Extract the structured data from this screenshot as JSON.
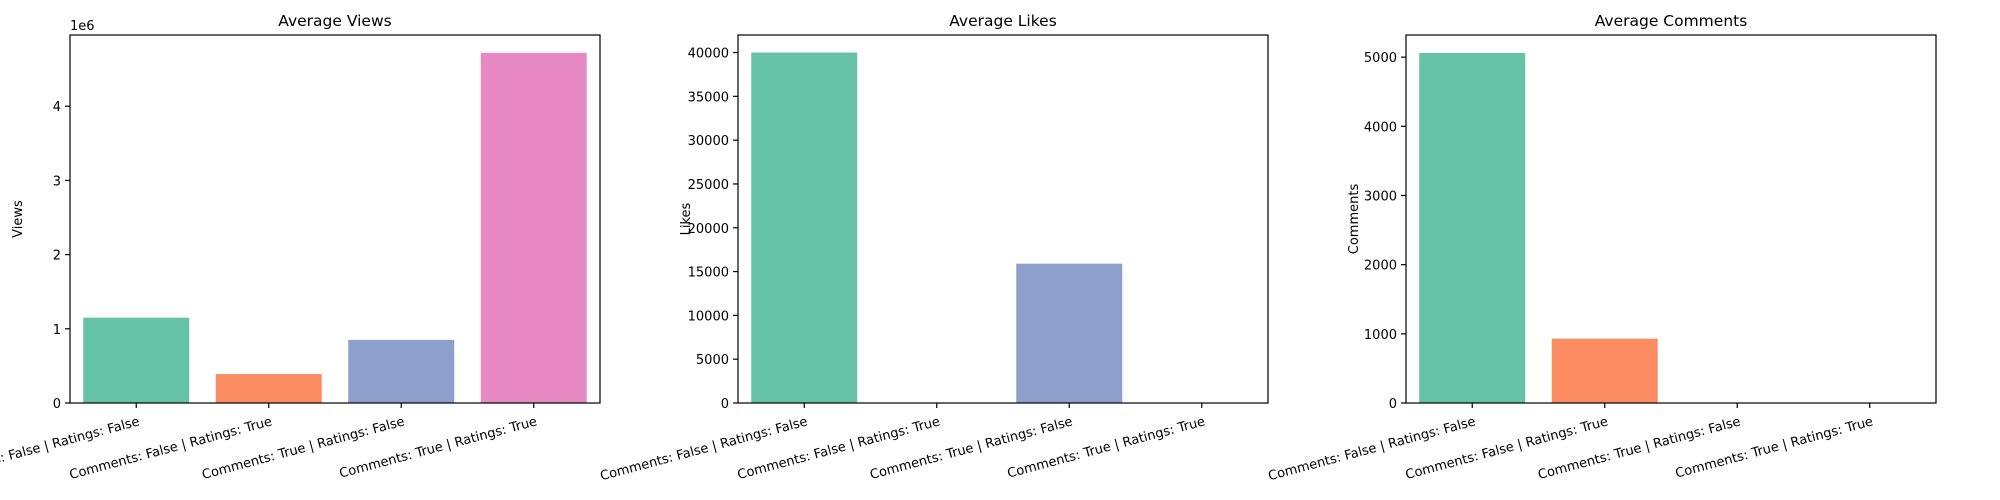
{
  "chart_data": [
    {
      "type": "bar",
      "title": "Average Views",
      "xlabel": "",
      "ylabel": "Views",
      "categories": [
        "Comments: False | Ratings: False",
        "Comments: False | Ratings: True",
        "Comments: True | Ratings: False",
        "Comments: True | Ratings: True"
      ],
      "values": [
        1150000,
        390000,
        850000,
        4720000
      ],
      "ylim": [
        0,
        4960000
      ],
      "yticks": [
        0,
        1000000,
        2000000,
        3000000,
        4000000
      ],
      "ytick_labels": [
        "0",
        "1",
        "2",
        "3",
        "4"
      ],
      "offset_label": "1e6",
      "grid": false
    },
    {
      "type": "bar",
      "title": "Average Likes",
      "xlabel": "",
      "ylabel": "Likes",
      "categories": [
        "Comments: False | Ratings: False",
        "Comments: False | Ratings: True",
        "Comments: True | Ratings: False",
        "Comments: True | Ratings: True"
      ],
      "values": [
        40000,
        0,
        15900,
        0
      ],
      "ylim": [
        0,
        42000
      ],
      "yticks": [
        0,
        5000,
        10000,
        15000,
        20000,
        25000,
        30000,
        35000,
        40000
      ],
      "ytick_labels": [
        "0",
        "5000",
        "10000",
        "15000",
        "20000",
        "25000",
        "30000",
        "35000",
        "40000"
      ],
      "offset_label": "",
      "grid": false
    },
    {
      "type": "bar",
      "title": "Average Comments",
      "xlabel": "",
      "ylabel": "Comments",
      "categories": [
        "Comments: False | Ratings: False",
        "Comments: False | Ratings: True",
        "Comments: True | Ratings: False",
        "Comments: True | Ratings: True"
      ],
      "values": [
        5060,
        930,
        0,
        0
      ],
      "ylim": [
        0,
        5320
      ],
      "yticks": [
        0,
        1000,
        2000,
        3000,
        4000,
        5000
      ],
      "ytick_labels": [
        "0",
        "1000",
        "2000",
        "3000",
        "4000",
        "5000"
      ],
      "offset_label": "",
      "grid": false
    }
  ],
  "colors": {
    "bars": [
      "#66c2a5",
      "#fc8d62",
      "#8da0cb",
      "#e78ac3"
    ],
    "axis": "#000000",
    "background": "#ffffff"
  }
}
